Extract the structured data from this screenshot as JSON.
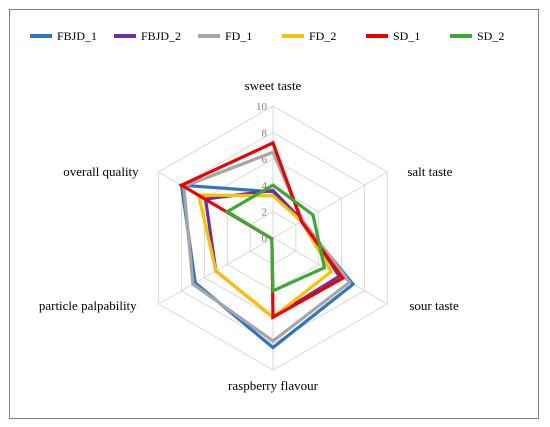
{
  "chart_data": {
    "type": "radar",
    "axes": [
      "sweet taste",
      "salt taste",
      "sour taste",
      "raspberry flavour",
      "particle palpability",
      "overall quality"
    ],
    "rlim": [
      0,
      10
    ],
    "ticks": [
      "0",
      "2",
      "4",
      "6",
      "8",
      "10"
    ],
    "grid": true,
    "legend_position": "top",
    "series": [
      {
        "name": "FBJD_1",
        "color": "#2f75c6",
        "values": [
          3.5,
          2.5,
          7.0,
          8.3,
          6.8,
          8.0
        ]
      },
      {
        "name": "FBJD_2",
        "color": "#7030a0",
        "values": [
          3.6,
          2.6,
          5.8,
          6.0,
          5.0,
          5.9
        ]
      },
      {
        "name": "FD_1",
        "color": "#a6a6a6",
        "values": [
          6.5,
          2.6,
          6.7,
          7.8,
          7.0,
          7.8
        ]
      },
      {
        "name": "FD_2",
        "color": "#ffc000",
        "values": [
          3.2,
          2.5,
          5.1,
          6.0,
          5.0,
          6.5
        ]
      },
      {
        "name": "SD_1",
        "color": "#ee0000",
        "values": [
          7.2,
          2.5,
          6.1,
          6.0,
          0.1,
          8.0
        ]
      },
      {
        "name": "SD_2",
        "color": "#3aaa35",
        "values": [
          4.0,
          3.5,
          4.5,
          4.0,
          0.1,
          4.0
        ]
      }
    ]
  }
}
